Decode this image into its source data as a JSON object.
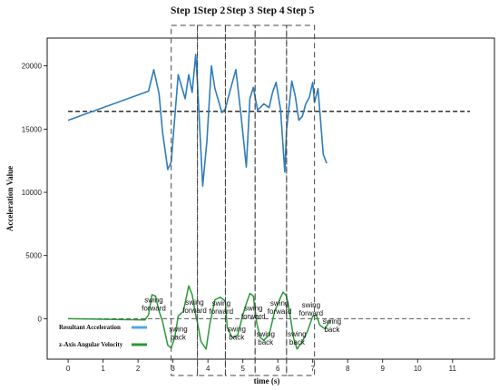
{
  "chart_data": {
    "type": "line",
    "xlabel": "time (s)",
    "ylabel": "Acceleration Value",
    "xlim": [
      -0.6,
      12.2
    ],
    "ylim": [
      -3200,
      22200
    ],
    "x_ticks": [
      0,
      1,
      2,
      3,
      4,
      5,
      6,
      7,
      8,
      9,
      10,
      11
    ],
    "y_ticks": [
      0,
      5000,
      10000,
      15000,
      20000
    ],
    "y_tick_labels": [
      "0",
      "5000",
      "10000",
      "15000",
      "20000"
    ],
    "threshold": 16400,
    "zero_line": 0,
    "steps": [
      {
        "label": "Step 1",
        "x_start": 2.95,
        "x_end": 3.7
      },
      {
        "label": "Step 2",
        "x_start": 3.7,
        "x_end": 4.5
      },
      {
        "label": "Step 3",
        "x_start": 4.5,
        "x_end": 5.35
      },
      {
        "label": "Step 4",
        "x_start": 5.35,
        "x_end": 6.25
      },
      {
        "label": "Step 5",
        "x_start": 6.25,
        "x_end": 7.05
      }
    ],
    "series": [
      {
        "name": "Resultant Acceleration",
        "color": "#2e7dbd",
        "x": [
          0,
          2.3,
          2.45,
          2.6,
          2.7,
          2.85,
          2.95,
          3.15,
          3.35,
          3.45,
          3.55,
          3.65,
          3.7,
          3.85,
          3.97,
          4.1,
          4.2,
          4.4,
          4.5,
          4.65,
          4.8,
          4.95,
          5.1,
          5.2,
          5.3,
          5.42,
          5.6,
          5.75,
          5.85,
          5.95,
          6.08,
          6.2,
          6.25,
          6.4,
          6.5,
          6.6,
          6.7,
          6.8,
          6.9,
          7.0,
          7.05,
          7.15,
          7.3,
          7.4
        ],
        "y": [
          15700,
          18000,
          19700,
          17800,
          14800,
          11800,
          12400,
          19300,
          17400,
          19300,
          17900,
          20900,
          18700,
          10500,
          14000,
          20000,
          18200,
          16300,
          16600,
          18200,
          19700,
          16000,
          12000,
          17400,
          18300,
          16500,
          17000,
          16700,
          17900,
          18700,
          16500,
          11600,
          14900,
          18800,
          17600,
          15700,
          16000,
          17000,
          17500,
          18700,
          17100,
          18200,
          13000,
          12300
        ]
      },
      {
        "name": "z-Axis Angular Velocity",
        "color": "#2a9a3a",
        "x": [
          0,
          2.2,
          2.3,
          2.4,
          2.5,
          2.6,
          2.7,
          2.85,
          2.95,
          3.05,
          3.15,
          3.3,
          3.45,
          3.55,
          3.65,
          3.7,
          3.8,
          3.95,
          4.05,
          4.2,
          4.35,
          4.5,
          4.55,
          4.7,
          4.85,
          5.0,
          5.1,
          5.2,
          5.3,
          5.4,
          5.5,
          5.6,
          5.75,
          5.9,
          6.05,
          6.15,
          6.25,
          6.35,
          6.45,
          6.55,
          6.7,
          6.85,
          7.0,
          7.1,
          7.2,
          7.35,
          7.5
        ],
        "y": [
          0,
          -100,
          300,
          1900,
          1800,
          600,
          -200,
          -2100,
          -2300,
          -1500,
          200,
          600,
          2600,
          1900,
          300,
          -300,
          -1800,
          -2400,
          -500,
          1500,
          1700,
          1400,
          -700,
          -1500,
          -1300,
          300,
          1200,
          2000,
          1800,
          -400,
          -1500,
          -1700,
          -1300,
          500,
          1500,
          2100,
          1800,
          300,
          -1500,
          -2400,
          -1800,
          -1000,
          200,
          300,
          -500,
          -800,
          -100
        ]
      }
    ],
    "annotations": [
      {
        "lines": [
          "swing",
          "forward"
        ],
        "x": 2.45,
        "y": 1300
      },
      {
        "lines": [
          "swing",
          "forward"
        ],
        "x": 3.62,
        "y": 1100
      },
      {
        "lines": [
          "swing",
          "forward"
        ],
        "x": 4.38,
        "y": 1050
      },
      {
        "lines": [
          "swing",
          "forward"
        ],
        "x": 5.3,
        "y": 650
      },
      {
        "lines": [
          "swing",
          "forward"
        ],
        "x": 6.05,
        "y": 1050
      },
      {
        "lines": [
          "swing",
          "forward"
        ],
        "x": 6.95,
        "y": 900
      },
      {
        "lines": [
          "swing",
          "back"
        ],
        "x": 3.15,
        "y": -1000
      },
      {
        "lines": [
          "swing",
          "back"
        ],
        "x": 4.82,
        "y": -1000
      },
      {
        "lines": [
          "swing",
          "back"
        ],
        "x": 5.65,
        "y": -1400
      },
      {
        "lines": [
          "swing",
          "back"
        ],
        "x": 6.55,
        "y": -1400
      },
      {
        "lines": [
          "swing",
          "back"
        ],
        "x": 7.55,
        "y": -400
      }
    ],
    "legend": {
      "placement": "bottom-left",
      "entries": [
        {
          "label": "Resultant Acceleration",
          "color": "#4aa8e6"
        },
        {
          "label": "z-Axis Angular Velocity",
          "color": "#2a9a3a"
        }
      ]
    },
    "grid": false
  },
  "colors": {
    "threshold": "#1a1a1a",
    "zero_line": "#555555",
    "step_box": "#444444"
  }
}
